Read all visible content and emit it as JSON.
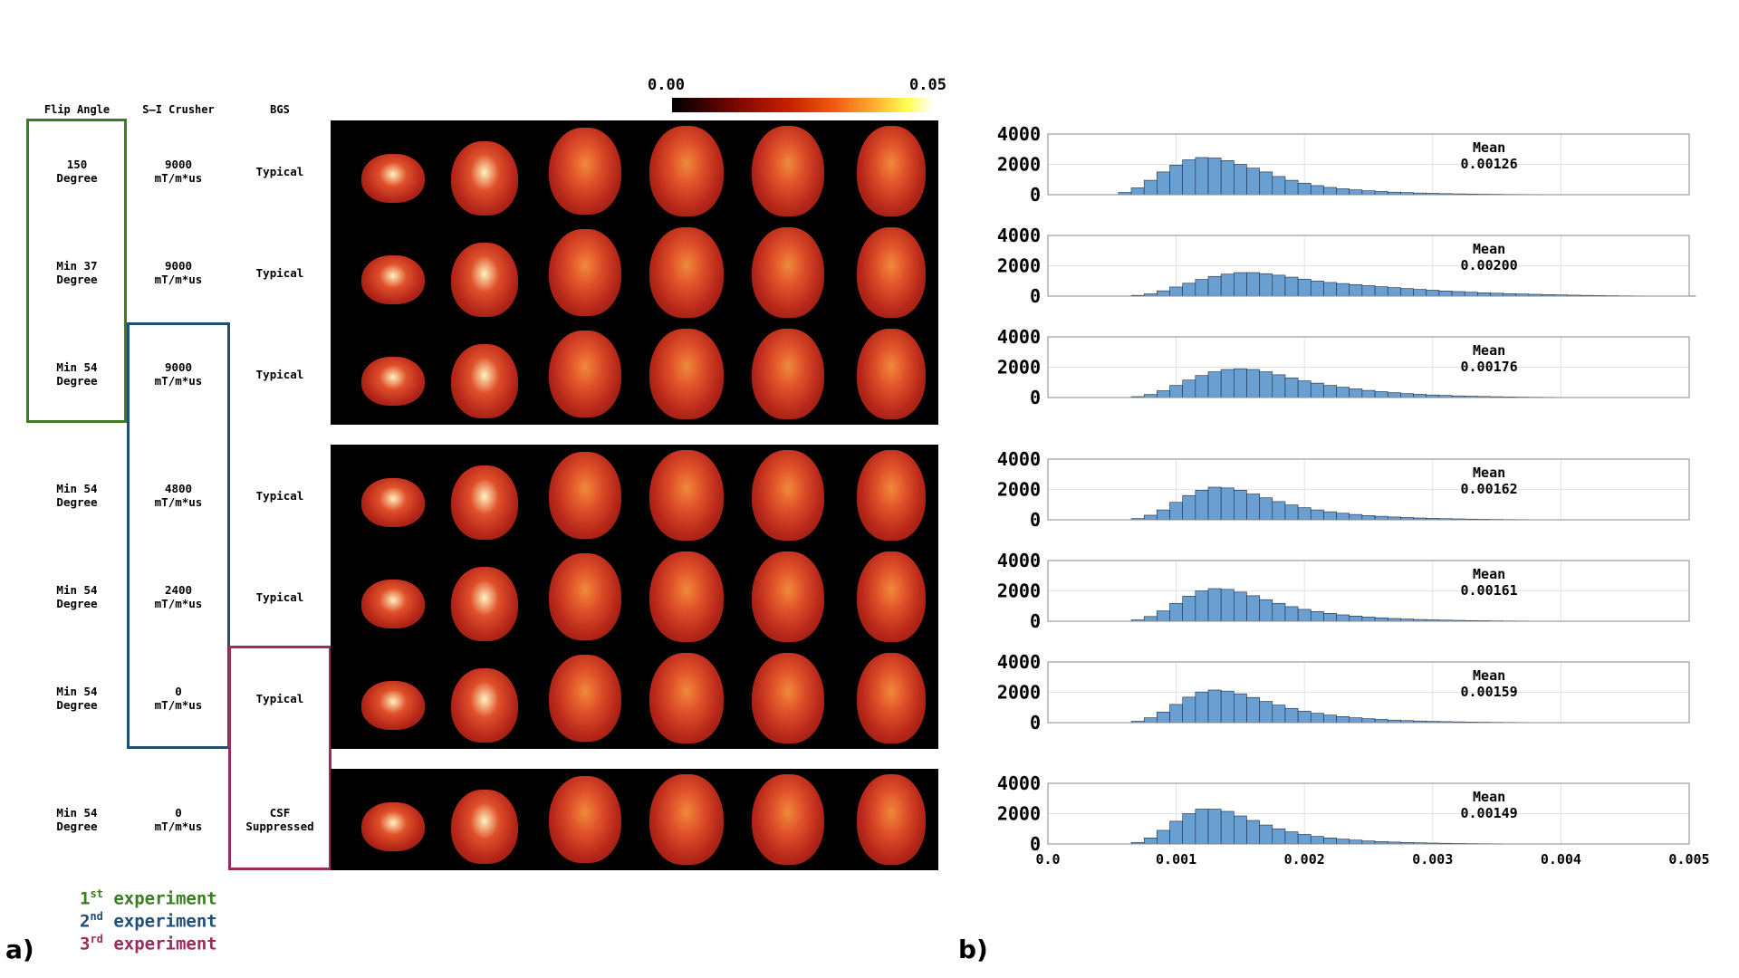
{
  "panel_a": {
    "label": "a)",
    "headers": {
      "flip_angle": "Flip Angle",
      "si_crusher": "S–I Crusher",
      "bgs": "BGS"
    },
    "rows": [
      {
        "flip": [
          "150",
          "Degree"
        ],
        "crusher": [
          "9000",
          "mT/m*us"
        ],
        "bgs": [
          "Typical"
        ]
      },
      {
        "flip": [
          "Min 37",
          "Degree"
        ],
        "crusher": [
          "9000",
          "mT/m*us"
        ],
        "bgs": [
          "Typical"
        ]
      },
      {
        "flip": [
          "Min 54",
          "Degree"
        ],
        "crusher": [
          "9000",
          "mT/m*us"
        ],
        "bgs": [
          "Typical"
        ]
      },
      {
        "flip": [
          "Min 54",
          "Degree"
        ],
        "crusher": [
          "4800",
          "mT/m*us"
        ],
        "bgs": [
          "Typical"
        ]
      },
      {
        "flip": [
          "Min 54",
          "Degree"
        ],
        "crusher": [
          "2400",
          "mT/m*us"
        ],
        "bgs": [
          "Typical"
        ]
      },
      {
        "flip": [
          "Min 54",
          "Degree"
        ],
        "crusher": [
          "0",
          "mT/m*us"
        ],
        "bgs": [
          "Typical"
        ]
      },
      {
        "flip": [
          "Min 54",
          "Degree"
        ],
        "crusher": [
          "0",
          "mT/m*us"
        ],
        "bgs": [
          "CSF",
          "Suppressed"
        ]
      }
    ],
    "colorbar": {
      "min_label": "0.00",
      "max_label": "0.05",
      "colormap": "hot"
    },
    "legend": [
      {
        "num": "1",
        "sup": "st",
        "text": " experiment",
        "color": "#3a7d22"
      },
      {
        "num": "2",
        "sup": "nd",
        "text": " experiment",
        "color": "#1f4e79"
      },
      {
        "num": "3",
        "sup": "rd",
        "text": " experiment",
        "color": "#9b2c5e"
      }
    ],
    "box_colors": {
      "experiment1": "#3a7d22",
      "experiment2": "#1f4e79",
      "experiment3": "#9b2c5e"
    }
  },
  "panel_b": {
    "label": "b)",
    "bar_color": "#6a9fd2"
  },
  "chart_data": {
    "type": "bar",
    "bin_centers": [
      0.0006,
      0.0007,
      0.0008,
      0.0009,
      0.001,
      0.0011,
      0.0012,
      0.0013,
      0.0014,
      0.0015,
      0.0016,
      0.0017,
      0.0018,
      0.0019,
      0.002,
      0.0021,
      0.0022,
      0.0023,
      0.0024,
      0.0025,
      0.0026,
      0.0027,
      0.0028,
      0.0029,
      0.003,
      0.0031,
      0.0032,
      0.0033,
      0.0034,
      0.0035,
      0.0036,
      0.0037,
      0.0038,
      0.0039,
      0.004,
      0.0041,
      0.0042,
      0.0043,
      0.0044,
      0.0045,
      0.0046,
      0.0047,
      0.0048,
      0.0049,
      0.005
    ],
    "xlim": [
      0,
      0.005
    ],
    "xticks": [
      "0.0",
      "0.001",
      "0.002",
      "0.003",
      "0.004",
      "0.005"
    ],
    "ylim": [
      0,
      4000
    ],
    "yticks": [
      "0",
      "2000",
      "4000"
    ],
    "grid": true,
    "histograms": [
      {
        "mean_label": "Mean",
        "mean_value": "0.00126",
        "values": [
          150,
          450,
          950,
          1500,
          1950,
          2300,
          2450,
          2420,
          2250,
          2000,
          1750,
          1500,
          1200,
          950,
          760,
          600,
          480,
          390,
          320,
          260,
          210,
          170,
          140,
          110,
          90,
          70,
          55,
          45,
          35,
          30,
          22,
          18,
          14,
          10,
          8,
          6,
          5,
          4,
          3,
          2,
          2,
          1,
          1,
          0,
          0
        ]
      },
      {
        "mean_label": "Mean",
        "mean_value": "0.00200",
        "values": [
          0,
          50,
          150,
          350,
          600,
          850,
          1100,
          1300,
          1450,
          1550,
          1550,
          1480,
          1380,
          1250,
          1120,
          1000,
          900,
          830,
          760,
          690,
          620,
          560,
          500,
          440,
          390,
          340,
          300,
          260,
          220,
          190,
          160,
          140,
          120,
          100,
          80,
          65,
          50,
          40,
          30,
          22,
          16,
          12,
          8,
          5,
          3
        ]
      },
      {
        "mean_label": "Mean",
        "mean_value": "0.00176",
        "values": [
          0,
          60,
          200,
          450,
          800,
          1150,
          1450,
          1700,
          1850,
          1900,
          1850,
          1700,
          1500,
          1300,
          1100,
          950,
          800,
          680,
          570,
          470,
          390,
          320,
          260,
          210,
          170,
          140,
          110,
          90,
          70,
          55,
          42,
          32,
          24,
          18,
          13,
          9,
          6,
          4,
          3,
          2,
          1,
          1,
          0,
          0,
          0
        ]
      },
      {
        "mean_label": "Mean",
        "mean_value": "0.00162",
        "values": [
          0,
          80,
          300,
          650,
          1150,
          1600,
          1950,
          2150,
          2100,
          1950,
          1700,
          1450,
          1200,
          980,
          800,
          650,
          530,
          430,
          350,
          280,
          230,
          185,
          150,
          120,
          95,
          75,
          60,
          47,
          37,
          28,
          21,
          16,
          12,
          9,
          6,
          4,
          3,
          2,
          1,
          1,
          0,
          0,
          0,
          0,
          0
        ]
      },
      {
        "mean_label": "Mean",
        "mean_value": "0.00161",
        "values": [
          0,
          90,
          310,
          680,
          1180,
          1650,
          2000,
          2150,
          2100,
          1920,
          1680,
          1420,
          1180,
          960,
          780,
          640,
          520,
          420,
          340,
          275,
          225,
          180,
          145,
          115,
          92,
          72,
          57,
          45,
          35,
          27,
          20,
          15,
          11,
          8,
          6,
          4,
          3,
          2,
          1,
          1,
          0,
          0,
          0,
          0,
          0
        ]
      },
      {
        "mean_label": "Mean",
        "mean_value": "0.00159",
        "values": [
          0,
          90,
          320,
          700,
          1200,
          1680,
          2020,
          2150,
          2080,
          1900,
          1660,
          1400,
          1160,
          940,
          760,
          620,
          500,
          400,
          320,
          260,
          210,
          168,
          135,
          108,
          86,
          68,
          53,
          41,
          32,
          25,
          19,
          14,
          10,
          7,
          5,
          3,
          2,
          1,
          1,
          0,
          0,
          0,
          0,
          0,
          0
        ]
      },
      {
        "mean_label": "Mean",
        "mean_value": "0.00149",
        "values": [
          0,
          100,
          400,
          900,
          1500,
          2000,
          2300,
          2300,
          2150,
          1850,
          1550,
          1250,
          1000,
          800,
          630,
          500,
          400,
          320,
          255,
          200,
          160,
          126,
          100,
          78,
          61,
          47,
          36,
          28,
          21,
          16,
          12,
          9,
          6,
          4,
          3,
          2,
          1,
          1,
          0,
          0,
          0,
          0,
          0,
          0,
          0
        ]
      }
    ]
  }
}
